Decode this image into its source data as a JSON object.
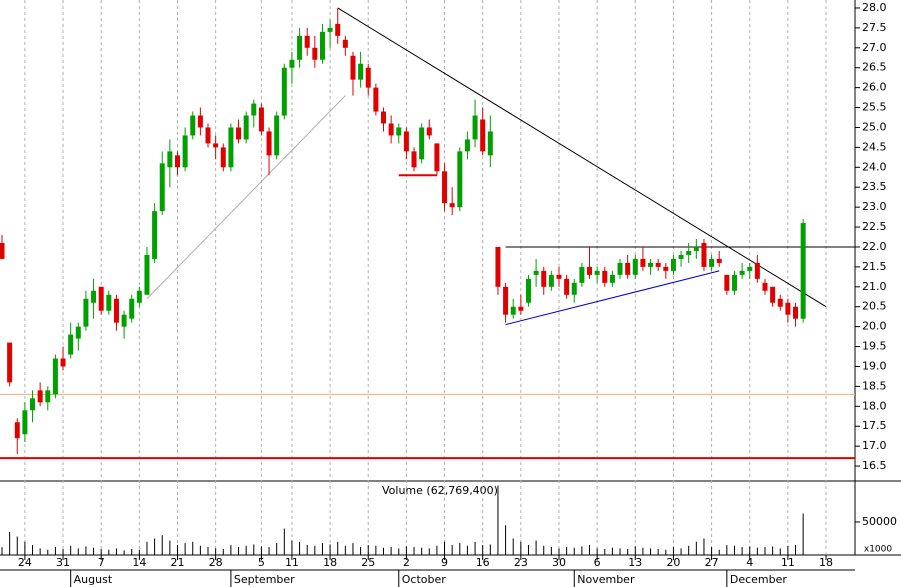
{
  "chart_data": [
    {
      "type": "candlestick",
      "categories": [
        "Jul 21",
        "Jul 22",
        "Jul 23",
        "Jul 24",
        "Jul 25",
        "Jul 28",
        "Jul 29",
        "Jul 30",
        "Jul 31",
        "Aug 1",
        "Aug 4",
        "Aug 5",
        "Aug 6",
        "Aug 7",
        "Aug 8",
        "Aug 11",
        "Aug 12",
        "Aug 13",
        "Aug 14",
        "Aug 15",
        "Aug 18",
        "Aug 19",
        "Aug 20",
        "Aug 21",
        "Aug 22",
        "Aug 25",
        "Aug 26",
        "Aug 27",
        "Aug 28",
        "Aug 29",
        "Sep 1",
        "Sep 2",
        "Sep 3",
        "Sep 4",
        "Sep 5",
        "Sep 8",
        "Sep 9",
        "Sep 10",
        "Sep 11",
        "Sep 12",
        "Sep 15",
        "Sep 16",
        "Sep 17",
        "Sep 18",
        "Sep 19",
        "Sep 22",
        "Sep 23",
        "Sep 24",
        "Sep 25",
        "Sep 26",
        "Sep 29",
        "Sep 30",
        "Oct 1",
        "Oct 2",
        "Oct 3",
        "Oct 6",
        "Oct 7",
        "Oct 8",
        "Oct 9",
        "Oct 10",
        "Oct 13",
        "Oct 14",
        "Oct 15",
        "Oct 16",
        "Oct 17",
        "Oct 20",
        "Oct 21",
        "Oct 22",
        "Oct 23",
        "Oct 24",
        "Oct 27",
        "Oct 28",
        "Oct 29",
        "Oct 30",
        "Oct 31",
        "Nov 3",
        "Nov 4",
        "Nov 5",
        "Nov 6",
        "Nov 7",
        "Nov 10",
        "Nov 11",
        "Nov 12",
        "Nov 13",
        "Nov 14",
        "Nov 17",
        "Nov 18",
        "Nov 19",
        "Nov 20",
        "Nov 21",
        "Nov 24",
        "Nov 25",
        "Nov 26",
        "Nov 27",
        "Nov 28",
        "Dec 1",
        "Dec 2",
        "Dec 3",
        "Dec 4",
        "Dec 5",
        "Dec 8",
        "Dec 9",
        "Dec 10",
        "Dec 11",
        "Dec 12",
        "Dec 15",
        "Dec 16",
        "Dec 17",
        "Dec 18"
      ],
      "open": [
        22.1,
        19.6,
        17.6,
        17.3,
        17.9,
        18.4,
        18.1,
        18.3,
        19.2,
        19.3,
        19.7,
        20.0,
        20.6,
        21.0,
        20.4,
        20.7,
        20.0,
        20.2,
        20.6,
        20.8,
        21.7,
        22.9,
        24.0,
        24.3,
        24.0,
        24.8,
        25.3,
        25.0,
        24.6,
        24.5,
        24.0,
        25.0,
        24.7,
        25.3,
        25.5,
        24.9,
        24.3,
        25.3,
        26.5,
        26.7,
        27.3,
        27.0,
        26.7,
        27.4,
        27.6,
        27.2,
        26.8,
        26.2,
        26.5,
        26.0,
        25.4,
        25.1,
        24.8,
        24.9,
        24.4,
        24.2,
        25.0,
        24.6,
        23.9,
        23.1,
        23.0,
        24.4,
        24.7,
        25.2,
        24.3,
        22.0,
        21.0,
        20.3,
        20.5,
        20.6,
        21.3,
        21.4,
        21.0,
        21.3,
        21.2,
        20.8,
        21.1,
        21.5,
        21.3,
        21.4,
        21.1,
        21.3,
        21.6,
        21.3,
        21.7,
        21.5,
        21.6,
        21.5,
        21.4,
        21.7,
        21.8,
        21.9,
        22.1,
        21.5,
        21.7,
        21.3,
        20.9,
        21.3,
        21.4,
        21.6,
        21.1,
        21.0,
        20.7,
        20.6,
        20.5,
        20.2,
        null,
        null,
        null
      ],
      "high": [
        22.3,
        19.6,
        17.7,
        18.1,
        18.4,
        18.6,
        18.5,
        19.3,
        19.5,
        20.1,
        20.1,
        20.9,
        21.2,
        21.0,
        20.9,
        20.8,
        20.4,
        20.8,
        21.0,
        22.0,
        23.1,
        24.4,
        24.7,
        24.4,
        25.0,
        25.4,
        25.5,
        25.1,
        24.8,
        24.6,
        25.1,
        25.2,
        25.4,
        25.7,
        25.6,
        25.0,
        25.4,
        26.6,
        26.9,
        27.5,
        27.5,
        27.3,
        27.6,
        27.7,
        28.0,
        27.3,
        26.9,
        26.9,
        26.6,
        26.1,
        25.5,
        25.3,
        25.1,
        25.0,
        24.5,
        25.1,
        25.2,
        24.6,
        24.1,
        23.5,
        24.5,
        24.9,
        25.7,
        25.5,
        25.3,
        22.0,
        21.1,
        20.7,
        20.8,
        21.3,
        21.7,
        21.5,
        21.4,
        21.5,
        21.3,
        21.2,
        21.6,
        22.0,
        21.5,
        21.5,
        21.4,
        21.7,
        21.8,
        21.8,
        22.0,
        21.7,
        21.7,
        21.6,
        21.8,
        21.9,
        22.1,
        22.2,
        22.2,
        21.8,
        21.9,
        21.3,
        21.4,
        21.6,
        21.6,
        21.8,
        21.2,
        21.0,
        20.8,
        20.7,
        20.6,
        22.7,
        null,
        null,
        null
      ],
      "low": [
        21.7,
        18.5,
        16.8,
        17.1,
        17.6,
        18.0,
        17.9,
        18.2,
        18.9,
        19.2,
        19.4,
        19.9,
        20.2,
        20.3,
        20.3,
        19.9,
        19.7,
        20.1,
        20.5,
        20.8,
        21.6,
        22.8,
        23.5,
        23.8,
        23.9,
        24.7,
        24.8,
        24.5,
        24.2,
        23.9,
        23.9,
        24.6,
        24.6,
        25.0,
        24.8,
        23.8,
        24.2,
        25.2,
        26.1,
        26.5,
        26.8,
        26.5,
        26.6,
        27.0,
        27.1,
        26.8,
        25.8,
        26.0,
        25.8,
        25.3,
        24.9,
        24.6,
        24.6,
        24.2,
        23.9,
        24.1,
        24.7,
        23.8,
        22.9,
        22.8,
        22.9,
        24.2,
        24.5,
        24.3,
        24.0,
        20.8,
        20.1,
        20.2,
        20.3,
        20.5,
        21.0,
        20.8,
        20.9,
        21.0,
        20.7,
        20.6,
        21.0,
        21.2,
        21.1,
        21.0,
        21.0,
        21.2,
        21.2,
        21.2,
        21.4,
        21.3,
        21.4,
        21.2,
        21.3,
        21.5,
        21.6,
        21.7,
        21.4,
        21.4,
        21.5,
        20.8,
        20.8,
        21.2,
        21.2,
        21.1,
        20.8,
        20.5,
        20.4,
        20.1,
        20.0,
        20.1,
        null,
        null,
        null
      ],
      "close": [
        21.7,
        18.6,
        17.2,
        17.9,
        18.2,
        18.1,
        18.4,
        19.2,
        19.0,
        19.8,
        20.0,
        20.7,
        20.9,
        20.4,
        20.8,
        20.1,
        20.3,
        20.7,
        20.9,
        21.8,
        22.9,
        24.1,
        24.4,
        24.0,
        24.8,
        25.3,
        25.0,
        24.6,
        24.5,
        24.0,
        25.0,
        24.7,
        25.3,
        25.6,
        24.9,
        24.3,
        25.3,
        26.5,
        26.7,
        27.3,
        27.0,
        26.7,
        27.4,
        27.5,
        27.3,
        27.0,
        26.2,
        26.6,
        26.0,
        25.4,
        25.1,
        24.8,
        25.0,
        24.4,
        24.0,
        25.0,
        24.8,
        23.9,
        23.1,
        23.0,
        24.4,
        24.7,
        25.3,
        24.4,
        24.9,
        21.0,
        20.3,
        20.5,
        20.4,
        21.2,
        21.4,
        21.0,
        21.3,
        21.2,
        20.8,
        21.1,
        21.5,
        21.3,
        21.4,
        21.1,
        21.3,
        21.6,
        21.3,
        21.7,
        21.5,
        21.6,
        21.5,
        21.4,
        21.7,
        21.8,
        21.9,
        22.0,
        21.5,
        21.7,
        21.6,
        20.9,
        21.3,
        21.4,
        21.5,
        21.2,
        20.9,
        20.6,
        20.5,
        20.3,
        20.2,
        22.6,
        null,
        null,
        null
      ],
      "up_color": "#00a000",
      "down_color": "#e00000",
      "ylim": [
        16.15,
        28.2
      ],
      "yticks": [
        16.5,
        {
          "value": 17,
          "label": "17.0"
        },
        17.5,
        {
          "value": 18,
          "label": "18.0"
        },
        18.5,
        {
          "value": 19,
          "label": "19.0"
        },
        19.5,
        {
          "value": 20,
          "label": "20.0"
        },
        20.5,
        {
          "value": 21,
          "label": "21.0"
        },
        21.5,
        {
          "value": 22,
          "label": "22.0"
        },
        22.5,
        {
          "value": 23,
          "label": "23.0"
        },
        23.5,
        {
          "value": 24,
          "label": "24.0"
        },
        24.5,
        {
          "value": 25,
          "label": "25.0"
        },
        25.5,
        {
          "value": 26,
          "label": "26.0"
        },
        26.5,
        {
          "value": 27,
          "label": "27.0"
        },
        27.5,
        {
          "value": 28,
          "label": "28.0"
        }
      ],
      "xticks": [
        {
          "value": "Jul 24",
          "label": "24"
        },
        {
          "value": "Jul 31",
          "label": "31"
        },
        {
          "value": "Aug 7",
          "label": "7"
        },
        {
          "value": "Aug 14",
          "label": "14"
        },
        {
          "value": "Aug 21",
          "label": "21"
        },
        {
          "value": "Aug 28",
          "label": "28"
        },
        {
          "value": "Sep 5",
          "label": "5"
        },
        {
          "value": "Sep 11",
          "label": "11"
        },
        {
          "value": "Sep 18",
          "label": "18"
        },
        {
          "value": "Sep 25",
          "label": "25"
        },
        {
          "value": "Oct 2",
          "label": "2"
        },
        {
          "value": "Oct 9",
          "label": "9"
        },
        {
          "value": "Oct 16",
          "label": "16"
        },
        {
          "value": "Oct 23",
          "label": "23"
        },
        {
          "value": "Oct 30",
          "label": "30"
        },
        {
          "value": "Nov 6",
          "label": "6"
        },
        {
          "value": "Nov 13",
          "label": "13"
        },
        {
          "value": "Nov 20",
          "label": "20"
        },
        {
          "value": "Nov 27",
          "label": "27"
        },
        {
          "value": "Dec 4",
          "label": "4"
        },
        {
          "value": "Dec 11",
          "label": "11"
        },
        {
          "value": "Dec 18",
          "label": "18"
        }
      ],
      "month_ticks": [
        {
          "value": "Aug 1",
          "label": "August"
        },
        {
          "value": "Sep 1",
          "label": "September"
        },
        {
          "value": "Oct 1",
          "label": "October"
        },
        {
          "value": "Nov 3",
          "label": "November"
        },
        {
          "value": "Dec 1",
          "label": "December"
        }
      ],
      "grid": true,
      "reference_lines": [
        {
          "value": 16.7,
          "color": "#e00000"
        },
        {
          "value": 18.3,
          "color": "#f0b070"
        },
        {
          "value": 22.0,
          "color": "#000000",
          "from": "Oct 21"
        },
        {
          "value": 23.8,
          "color": "#e00000",
          "from": "Oct 1",
          "to": "Oct 8"
        }
      ],
      "trendlines": [
        {
          "from": "Sep 19",
          "to": "Dec 18",
          "start": 28.0,
          "end": 20.5,
          "color": "#000000"
        },
        {
          "from": "Oct 21",
          "to": "Nov 28",
          "start": 20.05,
          "end": 21.4,
          "color": "#0000cc"
        },
        {
          "from": "Aug 15",
          "to": "Sep 22",
          "start": 20.7,
          "end": 25.8,
          "color": "#b0b0b0"
        }
      ]
    },
    {
      "type": "bar",
      "title": "Volume (62,769,400)",
      "color": "#000000",
      "values": [
        12000,
        35000,
        28000,
        20000,
        15000,
        10000,
        8000,
        12000,
        9000,
        14000,
        10000,
        13000,
        11000,
        9000,
        8000,
        10000,
        7000,
        9000,
        8000,
        20000,
        25000,
        30000,
        22000,
        15000,
        18000,
        20000,
        14000,
        12000,
        10000,
        9000,
        15000,
        12000,
        14000,
        16000,
        13000,
        12000,
        18000,
        40000,
        22000,
        20000,
        15000,
        14000,
        18000,
        16000,
        20000,
        14000,
        18000,
        12000,
        15000,
        14000,
        11000,
        12000,
        10000,
        13000,
        12000,
        11000,
        10000,
        14000,
        20000,
        15000,
        18000,
        14000,
        20000,
        15000,
        16000,
        105000,
        45000,
        25000,
        20000,
        15000,
        22000,
        14000,
        12000,
        10000,
        12000,
        11000,
        13000,
        15000,
        10000,
        9000,
        11000,
        10000,
        9000,
        13000,
        11000,
        10000,
        9000,
        8000,
        12000,
        10000,
        14000,
        20000,
        25000,
        12000,
        8000,
        15000,
        14000,
        12000,
        13000,
        11000,
        12000,
        13000,
        10000,
        14000,
        15000,
        62769.4,
        null,
        null,
        null
      ],
      "ylim": [
        0,
        109000
      ],
      "yticks": [
        50000
      ],
      "unit_label": "x1000"
    }
  ]
}
